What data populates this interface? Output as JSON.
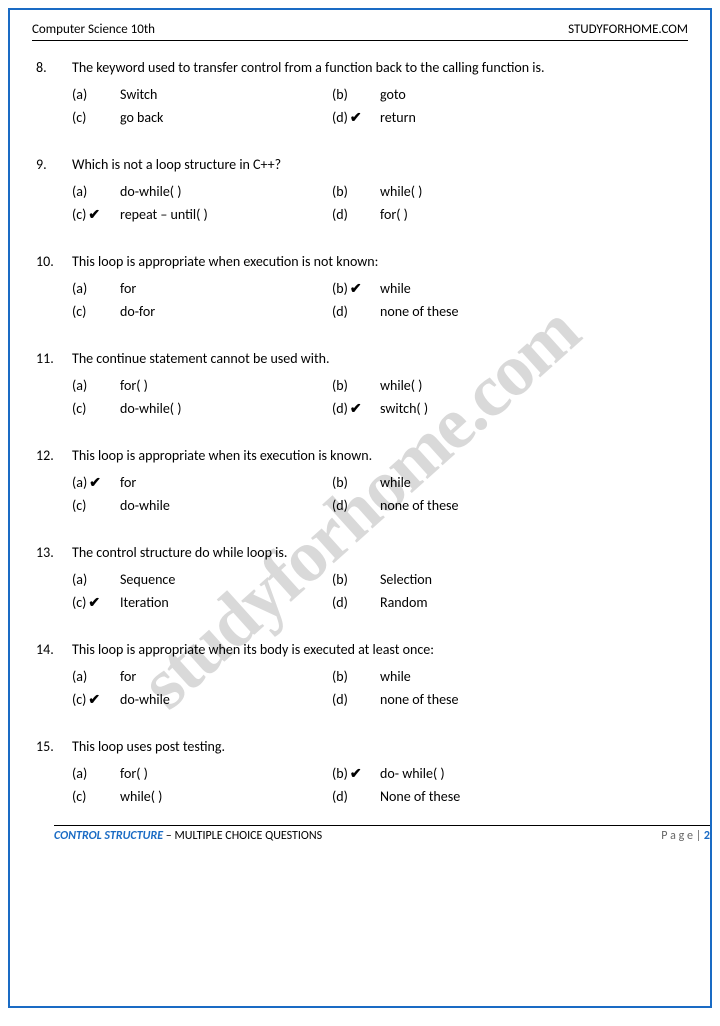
{
  "header": {
    "left": "Computer Science 10th",
    "right": "STUDYFORHOME.COM"
  },
  "watermark": "studyforhome.com",
  "checkmark": "✔",
  "footer": {
    "section": "CONTROL STRUCTURE",
    "subtitle": " – MULTIPLE CHOICE QUESTIONS",
    "page_label": "P a g e  | ",
    "page_number": "2"
  },
  "questions": [
    {
      "num": "8.",
      "text": "The keyword used to transfer control from a function back to the calling function is.",
      "opts": [
        {
          "l": "(a)",
          "t": "Switch",
          "c": false
        },
        {
          "l": "(b)",
          "t": "goto",
          "c": false
        },
        {
          "l": "(c)",
          "t": "go back",
          "c": false
        },
        {
          "l": "(d)",
          "t": "return",
          "c": true
        }
      ]
    },
    {
      "num": "9.",
      "text": "Which is not a loop structure in C++?",
      "opts": [
        {
          "l": "(a)",
          "t": "do-while( )",
          "c": false
        },
        {
          "l": "(b)",
          "t": "while( )",
          "c": false
        },
        {
          "l": "(c)",
          "t": "repeat – until( )",
          "c": true
        },
        {
          "l": "(d)",
          "t": "for( )",
          "c": false
        }
      ]
    },
    {
      "num": "10.",
      "text": "This loop is appropriate when execution is not known:",
      "opts": [
        {
          "l": "(a)",
          "t": "for",
          "c": false
        },
        {
          "l": "(b)",
          "t": "while",
          "c": true
        },
        {
          "l": "(c)",
          "t": "do-for",
          "c": false
        },
        {
          "l": "(d)",
          "t": "none of these",
          "c": false
        }
      ]
    },
    {
      "num": "11.",
      "text": "The continue statement cannot be used with.",
      "opts": [
        {
          "l": "(a)",
          "t": "for( )",
          "c": false
        },
        {
          "l": "(b)",
          "t": "while( )",
          "c": false
        },
        {
          "l": "(c)",
          "t": "do-while( )",
          "c": false
        },
        {
          "l": "(d)",
          "t": "switch( )",
          "c": true
        }
      ]
    },
    {
      "num": "12.",
      "text": "This loop is appropriate when its execution is known.",
      "opts": [
        {
          "l": "(a)",
          "t": "for",
          "c": true
        },
        {
          "l": "(b)",
          "t": "while",
          "c": false
        },
        {
          "l": "(c)",
          "t": "do-while",
          "c": false
        },
        {
          "l": "(d)",
          "t": "none of these",
          "c": false
        }
      ]
    },
    {
      "num": "13.",
      "text": "The control structure do while loop is.",
      "opts": [
        {
          "l": "(a)",
          "t": "Sequence",
          "c": false
        },
        {
          "l": "(b)",
          "t": "Selection",
          "c": false
        },
        {
          "l": "(c)",
          "t": "Iteration",
          "c": true
        },
        {
          "l": "(d)",
          "t": "Random",
          "c": false
        }
      ]
    },
    {
      "num": "14.",
      "text": "This loop is appropriate when its body is executed at least once:",
      "opts": [
        {
          "l": "(a)",
          "t": "for",
          "c": false
        },
        {
          "l": "(b)",
          "t": "while",
          "c": false
        },
        {
          "l": "(c)",
          "t": "do-while",
          "c": true
        },
        {
          "l": "(d)",
          "t": "none of these",
          "c": false
        }
      ]
    },
    {
      "num": "15.",
      "text": "This loop uses post testing.",
      "opts": [
        {
          "l": "(a)",
          "t": "for( )",
          "c": false
        },
        {
          "l": "(b)",
          "t": "do- while( )",
          "c": true
        },
        {
          "l": "(c)",
          "t": "while( )",
          "c": false
        },
        {
          "l": "(d)",
          "t": "None of these",
          "c": false
        }
      ]
    }
  ]
}
